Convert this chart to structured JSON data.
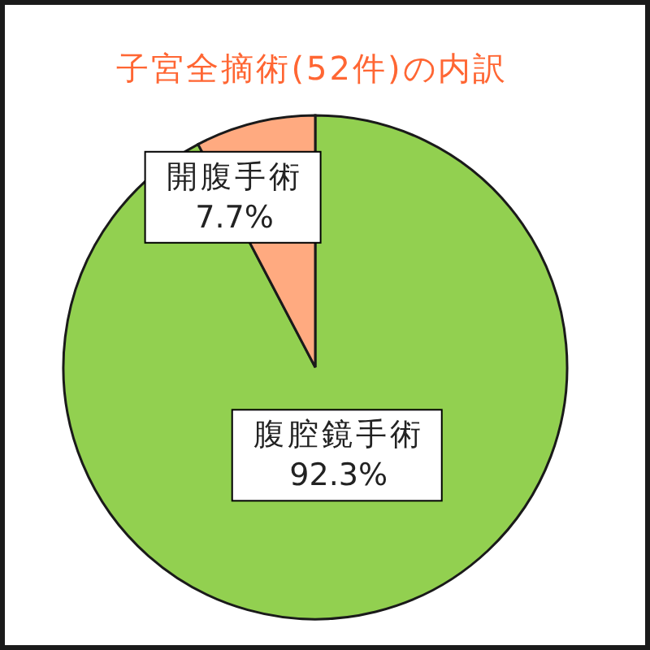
{
  "chart_data": {
    "type": "pie",
    "title": "子宮全摘術(52件)の内訳",
    "categories": [
      "腹腔鏡手術",
      "開腹手術"
    ],
    "values": [
      92.3,
      7.7
    ],
    "colors": [
      "#92d050",
      "#ffaa80"
    ],
    "value_labels": [
      "92.3%",
      "7.7%"
    ]
  }
}
